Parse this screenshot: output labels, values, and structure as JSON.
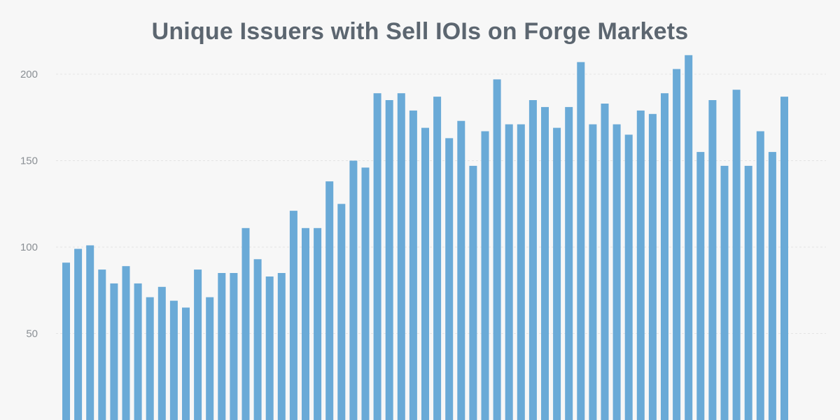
{
  "chart_data": {
    "type": "bar",
    "title": "Unique Issuers with Sell IOIs on Forge Markets",
    "xlabel": "",
    "ylabel": "",
    "ylim": [
      0,
      215
    ],
    "yticks": [
      50,
      100,
      150,
      200
    ],
    "grid": true,
    "bar_color": "#6aaad7",
    "values": [
      91,
      99,
      101,
      87,
      79,
      89,
      79,
      71,
      77,
      69,
      65,
      87,
      71,
      85,
      85,
      111,
      93,
      83,
      85,
      121,
      111,
      111,
      138,
      125,
      150,
      146,
      189,
      185,
      189,
      179,
      169,
      187,
      163,
      173,
      147,
      167,
      197,
      171,
      171,
      185,
      181,
      169,
      181,
      207,
      171,
      183,
      171,
      165,
      179,
      177,
      189,
      203,
      211,
      155,
      185,
      147,
      191,
      147,
      167,
      155,
      187
    ]
  },
  "colors": {
    "background": "#f7f7f7",
    "bar": "#6aaad7",
    "title": "#5c6670",
    "tick": "#8a8f94",
    "grid": "#e4e4e4"
  }
}
